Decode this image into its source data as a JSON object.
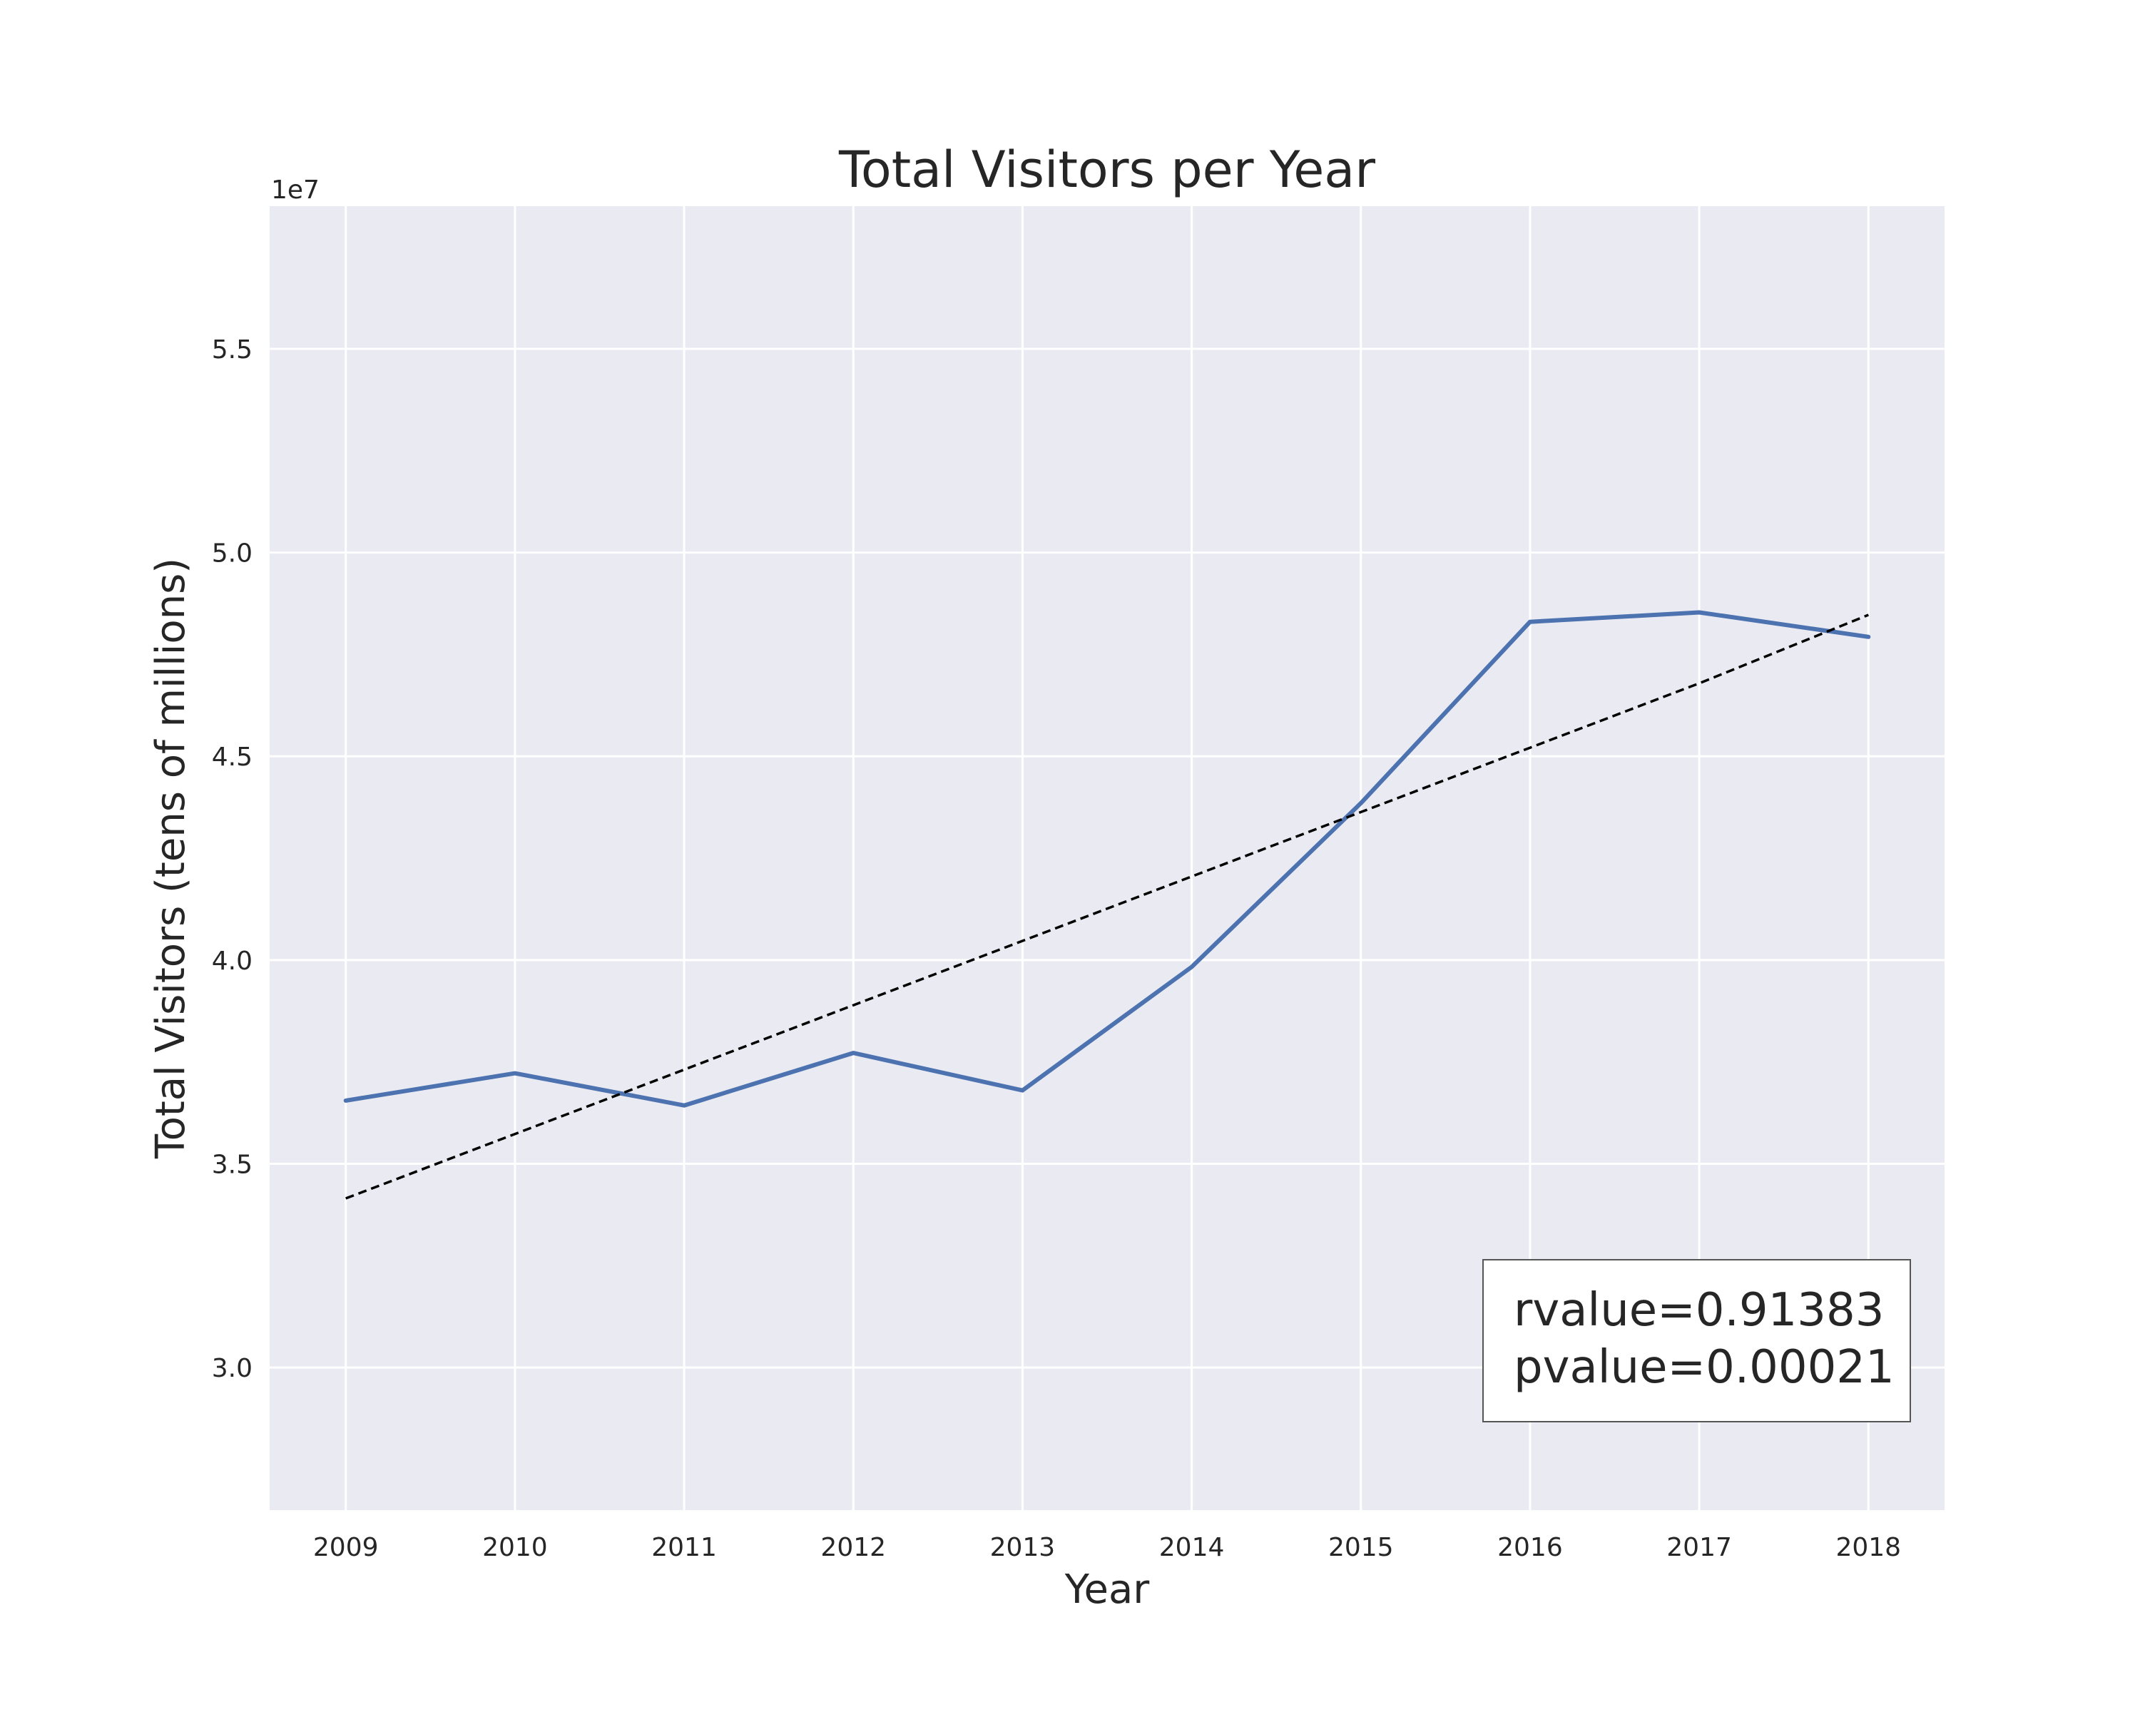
{
  "chart_data": {
    "type": "line",
    "title": "Total Visitors per Year",
    "xlabel": "Year",
    "ylabel": "Total Visitors (tens of millions)",
    "y_offset_label": "1e7",
    "x": [
      2009,
      2010,
      2011,
      2012,
      2013,
      2014,
      2015,
      2016,
      2017,
      2018
    ],
    "x_tick_labels": [
      "2009",
      "2010",
      "2011",
      "2012",
      "2013",
      "2014",
      "2015",
      "2016",
      "2017",
      "2018"
    ],
    "y_ticks": [
      3.0,
      3.5,
      4.0,
      4.5,
      5.0,
      5.5
    ],
    "y_tick_labels": [
      "3.0",
      "3.5",
      "4.0",
      "4.5",
      "5.0",
      "5.5"
    ],
    "xlim": [
      2008.55,
      2018.45
    ],
    "ylim": [
      2.65,
      5.85
    ],
    "grid": true,
    "series": [
      {
        "values": [
          3.655,
          3.722,
          3.643,
          3.772,
          3.68,
          3.983,
          4.385,
          4.83,
          4.853,
          4.793
        ],
        "color": "#4C72B0",
        "style": "solid"
      },
      {
        "values": [
          3.415,
          3.573,
          3.731,
          3.889,
          4.047,
          4.205,
          4.363,
          4.521,
          4.679,
          4.847
        ],
        "color": "#000000",
        "style": "dashed"
      }
    ],
    "annotation": {
      "lines": [
        "rvalue=0.91383",
        "pvalue=0.00021"
      ]
    },
    "colors": {
      "plot_background": "#EAEAF2",
      "grid": "#FFFFFF",
      "text": "#262626"
    }
  }
}
